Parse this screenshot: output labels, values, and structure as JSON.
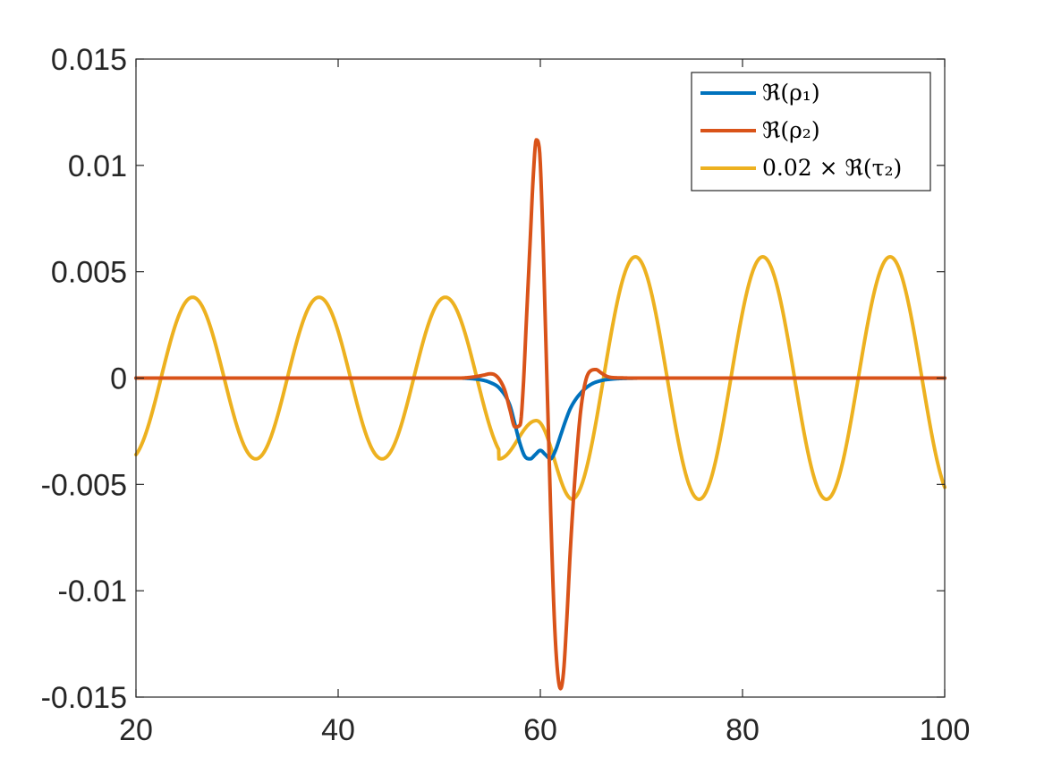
{
  "chart_data": {
    "type": "line",
    "title": "",
    "xlabel": "",
    "ylabel": "",
    "xlim": [
      20,
      100
    ],
    "ylim": [
      -0.015,
      0.015
    ],
    "grid": false,
    "legend_position": "top-right",
    "x_ticks": [
      20,
      40,
      60,
      80,
      100
    ],
    "x_tick_labels": [
      "20",
      "40",
      "60",
      "80",
      "100"
    ],
    "y_ticks": [
      -0.015,
      -0.01,
      -0.005,
      0,
      0.005,
      0.01,
      0.015
    ],
    "y_tick_labels": [
      "-0.015",
      "-0.01",
      "-0.005",
      "0",
      "0.005",
      "0.01",
      "0.015"
    ],
    "series": [
      {
        "name": "ℜ(ρ₁)",
        "color": "#0072BD",
        "x": [
          20,
          50,
          52,
          53,
          54,
          55,
          56,
          57,
          57.5,
          58,
          58.5,
          59,
          59.5,
          60,
          60.5,
          61,
          61.5,
          62,
          62.5,
          63,
          64,
          65,
          66,
          67,
          68,
          69,
          70,
          100
        ],
        "y": [
          0,
          0,
          0,
          -2e-05,
          -7e-05,
          -0.0002,
          -0.0005,
          -0.0013,
          -0.0022,
          -0.0031,
          -0.0037,
          -0.0038,
          -0.0036,
          -0.0034,
          -0.0036,
          -0.0038,
          -0.0034,
          -0.0027,
          -0.002,
          -0.0014,
          -0.0007,
          -0.0003,
          -0.00012,
          -5e-05,
          -2e-05,
          -1e-05,
          0,
          0
        ]
      },
      {
        "name": "ℜ(ρ₂)",
        "color": "#D95319",
        "x": [
          20,
          52,
          53,
          54,
          54.5,
          55,
          55.5,
          56,
          56.5,
          57,
          57.5,
          58,
          58.3,
          58.6,
          59,
          59.3,
          59.6,
          59.9,
          60.2,
          60.5,
          60.8,
          61.1,
          61.4,
          61.7,
          62,
          62.3,
          62.6,
          63,
          63.5,
          64,
          64.5,
          65,
          65.5,
          66,
          66.5,
          67,
          68,
          69,
          70,
          100
        ],
        "y": [
          0,
          0,
          3e-05,
          0.0001,
          0.00015,
          0.0002,
          0.00015,
          -0.0001,
          -0.0006,
          -0.0015,
          -0.0023,
          -0.0022,
          -0.0005,
          0.0025,
          0.0065,
          0.0095,
          0.0112,
          0.0108,
          0.0075,
          0.0025,
          -0.0025,
          -0.0075,
          -0.0115,
          -0.0138,
          -0.0146,
          -0.0138,
          -0.0115,
          -0.0078,
          -0.0042,
          -0.0015,
          -0.0001,
          0.00035,
          0.0004,
          0.00025,
          0.0001,
          3e-05,
          1e-05,
          0,
          0,
          0
        ]
      },
      {
        "name": "0.02 × ℜ(τ₂)",
        "color": "#EDB120",
        "model": "piecewise-sinusoid",
        "x": [
          20,
          25.6,
          38.1,
          50.6,
          55.9,
          59.6,
          63.2,
          69.4,
          82,
          94.6,
          100
        ],
        "y": [
          -0.0035,
          0.0038,
          0.0038,
          0.0038,
          -0.0038,
          -0.002,
          -0.0057,
          0.0057,
          0.0057,
          0.0057,
          -0.0052
        ],
        "segments": [
          {
            "x_start": 20,
            "x_end": 55.9,
            "amplitude": 0.0038,
            "period": 12.5,
            "peak_x": 25.6
          },
          {
            "x_start": 55.9,
            "x_end": 59.6,
            "from": -0.0038,
            "to": -0.002
          },
          {
            "x_start": 59.6,
            "x_end": 63.2,
            "from": -0.002,
            "to": -0.0057
          },
          {
            "x_start": 63.2,
            "x_end": 100,
            "amplitude": 0.0057,
            "period": 12.6,
            "peak_x": 69.4
          }
        ]
      }
    ]
  }
}
